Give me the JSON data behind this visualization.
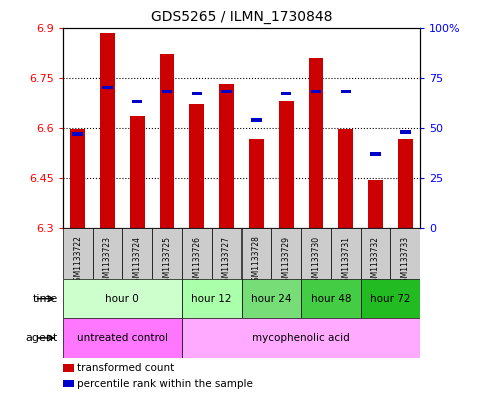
{
  "title": "GDS5265 / ILMN_1730848",
  "samples": [
    "GSM1133722",
    "GSM1133723",
    "GSM1133724",
    "GSM1133725",
    "GSM1133726",
    "GSM1133727",
    "GSM1133728",
    "GSM1133729",
    "GSM1133730",
    "GSM1133731",
    "GSM1133732",
    "GSM1133733"
  ],
  "transformed_count": [
    6.595,
    6.885,
    6.635,
    6.82,
    6.67,
    6.73,
    6.565,
    6.68,
    6.81,
    6.595,
    6.445,
    6.565
  ],
  "percentile_rank": [
    47,
    70,
    63,
    68,
    67,
    68,
    54,
    67,
    68,
    68,
    37,
    48
  ],
  "y_min": 6.3,
  "y_max": 6.9,
  "y_ticks": [
    6.3,
    6.45,
    6.6,
    6.75,
    6.9
  ],
  "y_tick_labels": [
    "6.3",
    "6.45",
    "6.6",
    "6.75",
    "6.9"
  ],
  "right_y_ticks": [
    0,
    25,
    50,
    75,
    100
  ],
  "right_y_tick_labels": [
    "0",
    "25",
    "50",
    "75",
    "100%"
  ],
  "bar_color": "#cc0000",
  "blue_color": "#0000cc",
  "bar_width": 0.5,
  "time_groups": [
    {
      "label": "hour 0",
      "samples": [
        0,
        1,
        2,
        3
      ],
      "color": "#ccffcc"
    },
    {
      "label": "hour 12",
      "samples": [
        4,
        5
      ],
      "color": "#aaffaa"
    },
    {
      "label": "hour 24",
      "samples": [
        6,
        7
      ],
      "color": "#77dd77"
    },
    {
      "label": "hour 48",
      "samples": [
        8,
        9
      ],
      "color": "#44cc44"
    },
    {
      "label": "hour 72",
      "samples": [
        10,
        11
      ],
      "color": "#22bb22"
    }
  ],
  "agent_groups": [
    {
      "label": "untreated control",
      "samples": [
        0,
        1,
        2,
        3
      ],
      "color": "#ff77ff"
    },
    {
      "label": "mycophenolic acid",
      "samples": [
        4,
        5,
        6,
        7,
        8,
        9,
        10,
        11
      ],
      "color": "#ffaaff"
    }
  ],
  "legend_bar_color": "#cc0000",
  "legend_blue_color": "#0000cc"
}
